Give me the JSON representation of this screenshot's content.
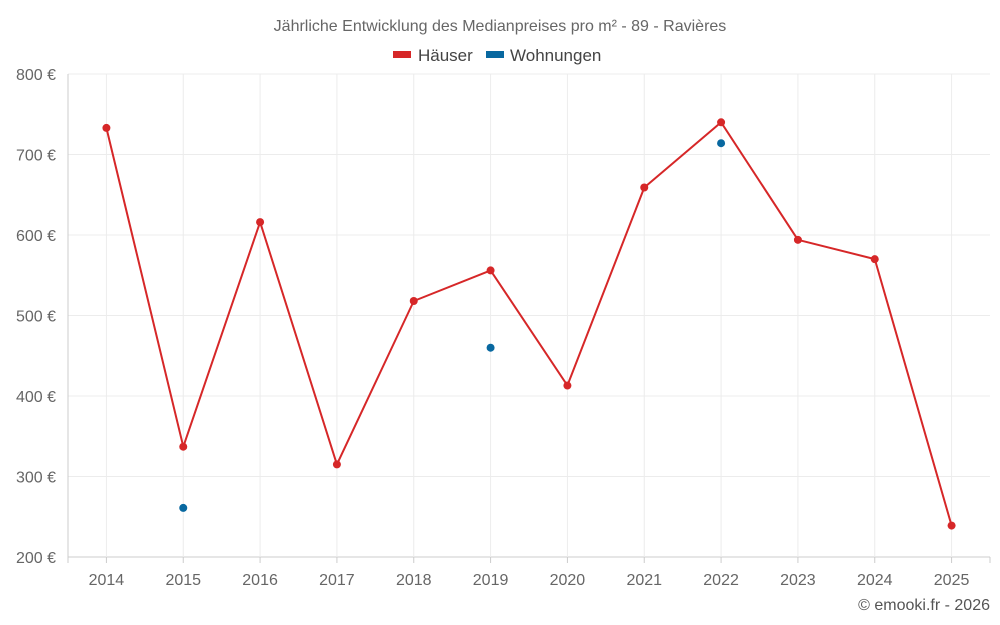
{
  "chart_data": {
    "type": "line",
    "title": "Jährliche Entwicklung des Medianpreises pro m² - 89 - Ravières",
    "x": [
      2014,
      2015,
      2016,
      2017,
      2018,
      2019,
      2020,
      2021,
      2022,
      2023,
      2024,
      2025
    ],
    "x_tick_labels": [
      "2014",
      "2015",
      "2016",
      "2017",
      "2018",
      "2019",
      "2020",
      "2021",
      "2022",
      "2023",
      "2024",
      "2025"
    ],
    "y_ticks": [
      200,
      300,
      400,
      500,
      600,
      700,
      800
    ],
    "y_tick_labels": [
      "200 €",
      "300 €",
      "400 €",
      "500 €",
      "600 €",
      "700 €",
      "800 €"
    ],
    "ylim": [
      200,
      800
    ],
    "grid": true,
    "legend_position": "top-center",
    "series": [
      {
        "name": "Häuser",
        "color": "#d62728",
        "style": "line-with-markers",
        "values": [
          733,
          337,
          616,
          315,
          518,
          556,
          413,
          659,
          740,
          594,
          570,
          239
        ]
      },
      {
        "name": "Wohnungen",
        "color": "#0868a0",
        "style": "markers-only",
        "values": [
          null,
          261,
          null,
          null,
          null,
          460,
          null,
          null,
          714,
          null,
          null,
          null
        ]
      }
    ],
    "credit": "© emooki.fr - 2026"
  }
}
